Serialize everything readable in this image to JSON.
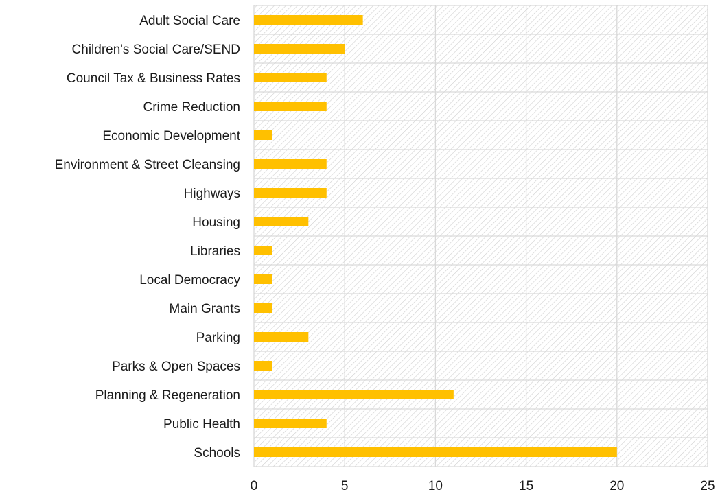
{
  "chart_data": {
    "type": "bar",
    "orientation": "horizontal",
    "categories": [
      "Adult Social Care",
      "Children's Social Care/SEND",
      "Council Tax & Business Rates",
      "Crime Reduction",
      "Economic Development",
      "Environment & Street Cleansing",
      "Highways",
      "Housing",
      "Libraries",
      "Local Democracy",
      "Main Grants",
      "Parking",
      "Parks & Open Spaces",
      "Planning & Regeneration",
      "Public Health",
      "Schools"
    ],
    "values": [
      6,
      5,
      4,
      4,
      1,
      4,
      4,
      3,
      1,
      1,
      1,
      3,
      1,
      11,
      4,
      20
    ],
    "xlim": [
      0,
      25
    ],
    "xticks": [
      "0",
      "5",
      "10",
      "15",
      "20",
      "25"
    ],
    "grid": true,
    "plot_background": "hatched",
    "colors": {
      "bar": "#FFC000",
      "grid": "#d9d9d9",
      "hatch": "#cfcfcf"
    },
    "title": "",
    "xlabel": "",
    "ylabel": ""
  }
}
